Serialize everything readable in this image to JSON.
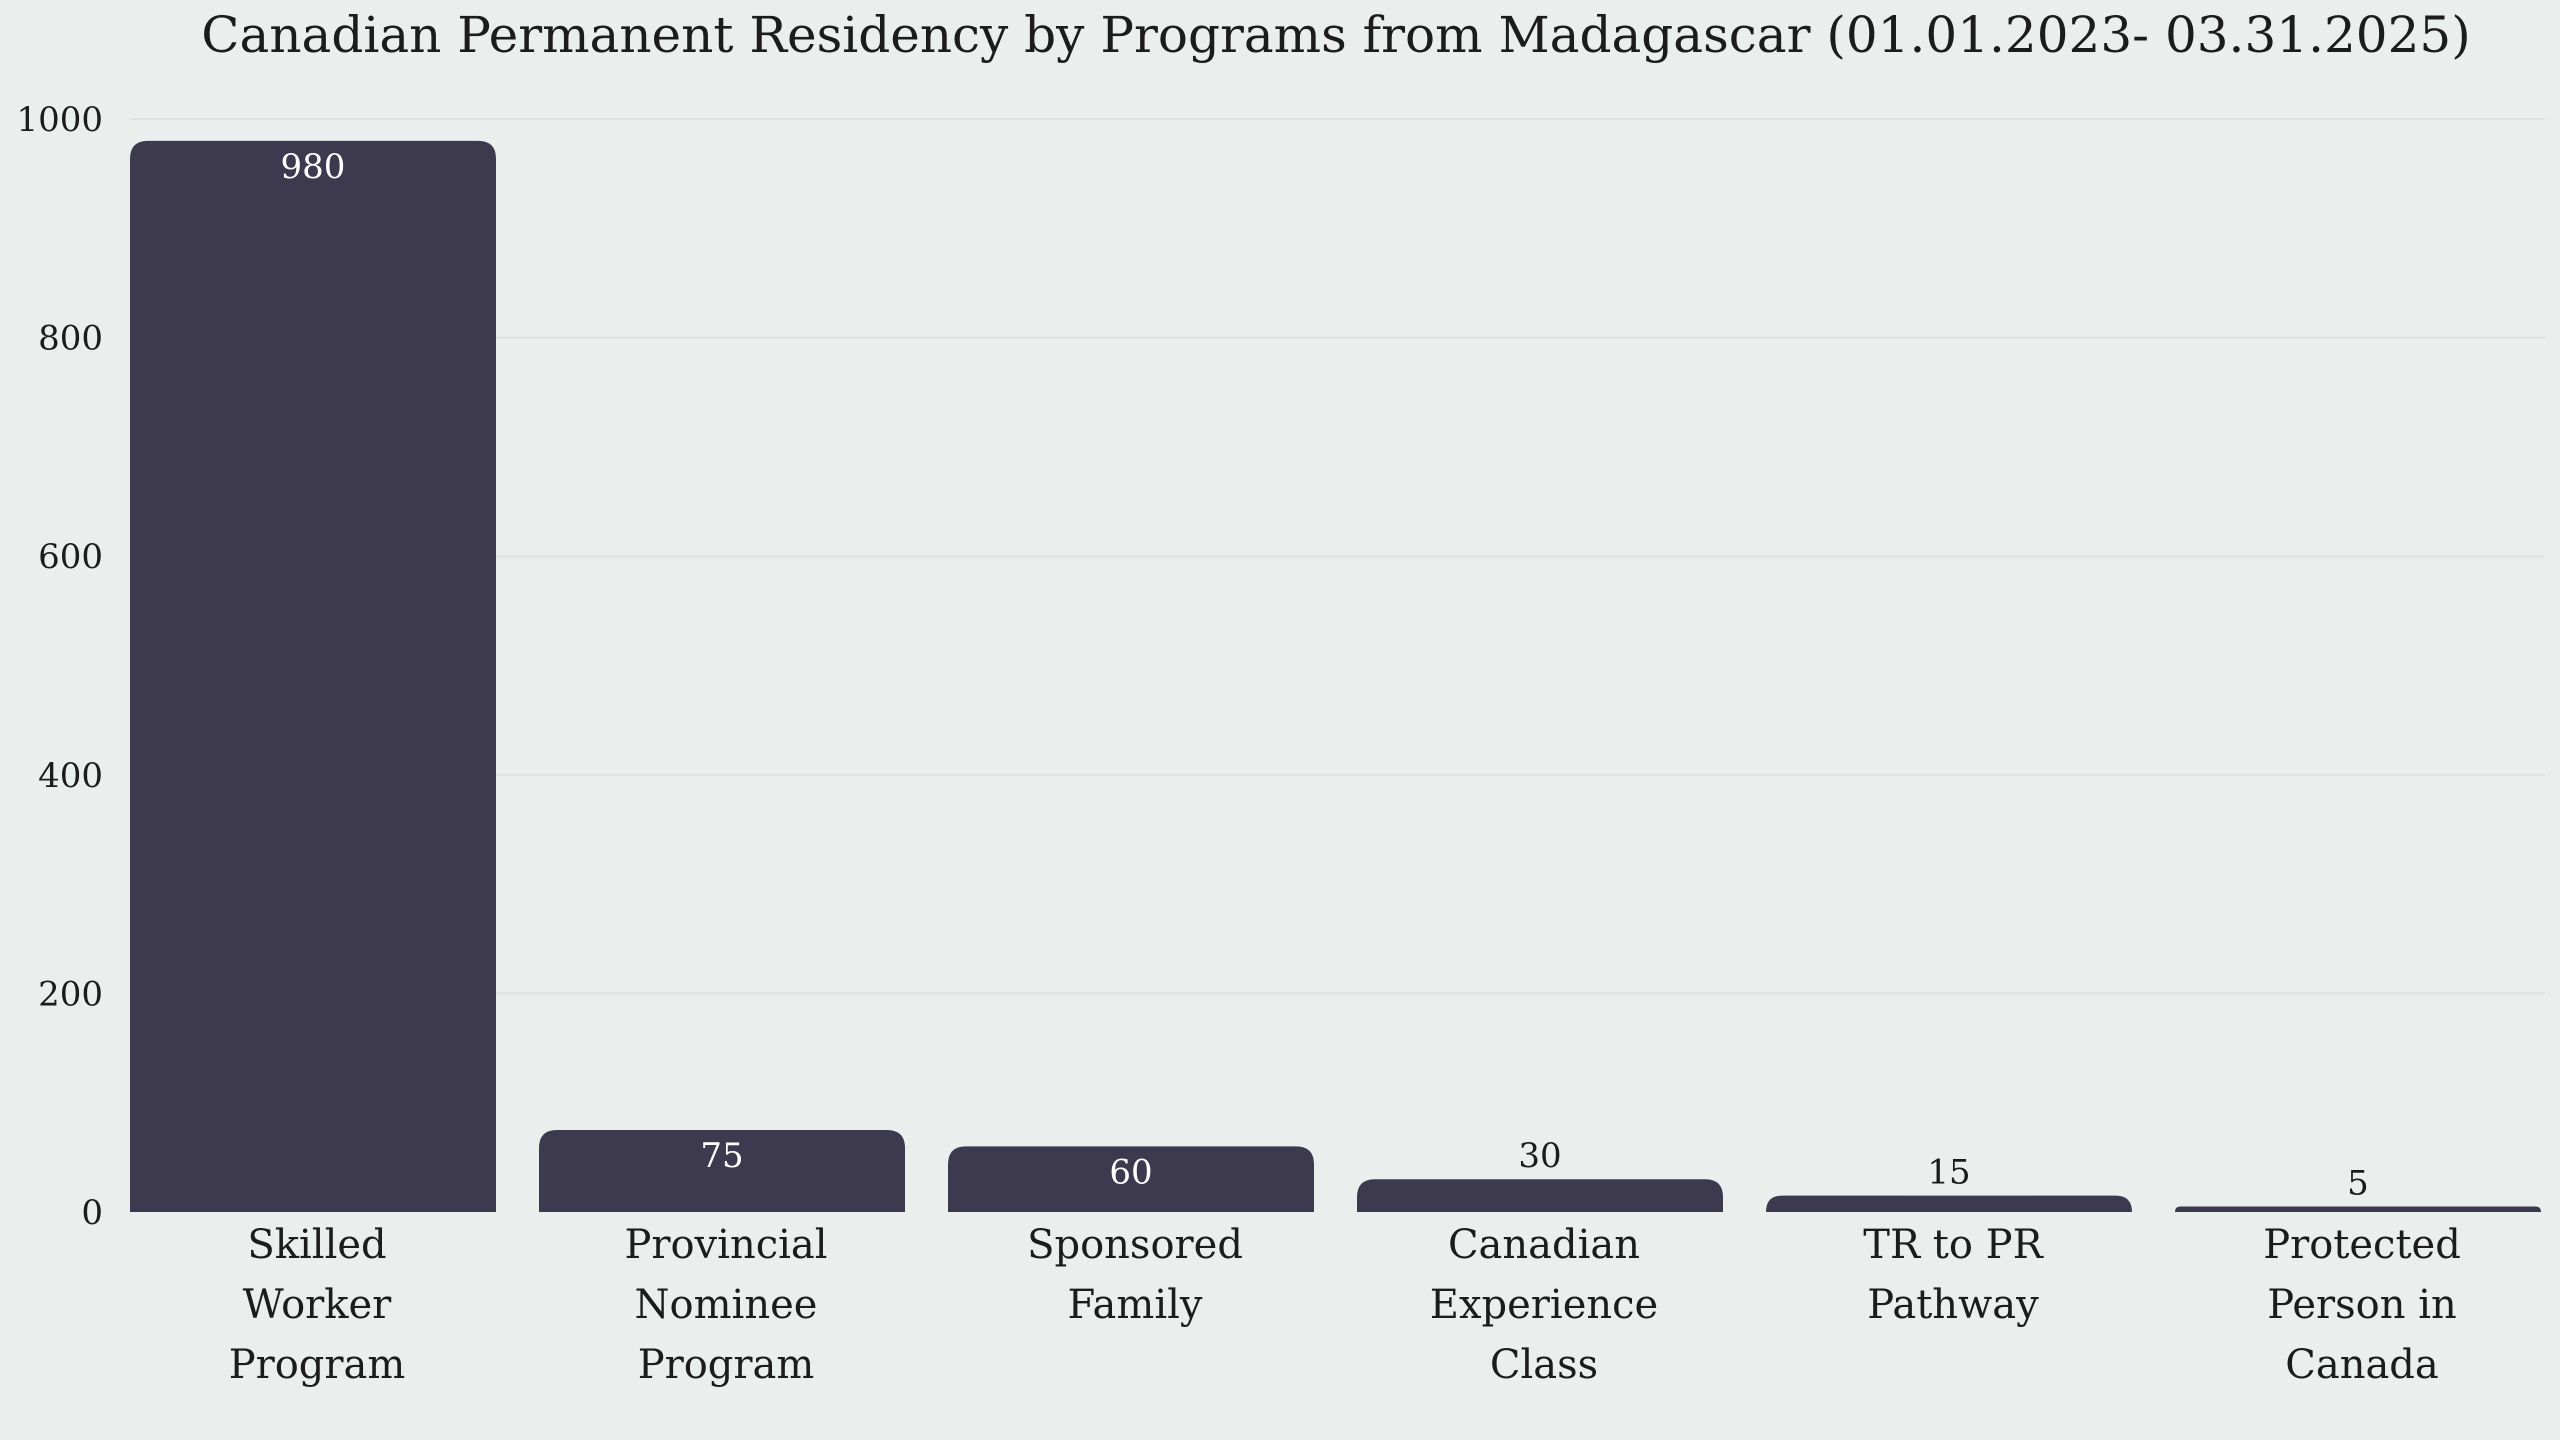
{
  "chart_data": {
    "type": "bar",
    "title": "Canadian Permanent Residency by Programs from Madagascar (01.01.2023- 03.31.2025)",
    "xlabel": "",
    "ylabel": "",
    "categories": [
      [
        "Skilled",
        "Worker",
        "Program"
      ],
      [
        "Provincial",
        "Nominee",
        "Program"
      ],
      [
        "Sponsored",
        "Family"
      ],
      [
        "Canadian",
        "Experience",
        "Class"
      ],
      [
        "TR to PR",
        "Pathway"
      ],
      [
        "Protected",
        "Person in",
        "Canada"
      ]
    ],
    "values": [
      980,
      75,
      60,
      30,
      15,
      5
    ],
    "ylim": [
      0,
      1000
    ],
    "yticks": [
      0,
      200,
      400,
      600,
      800,
      1000
    ],
    "grid": true,
    "legend": "none",
    "colors": {
      "bar": "#3d3a4f",
      "label_inside": "#ffffff",
      "label_outside": "#1c1c1c",
      "background": "#eaeeed",
      "grid": "#dde3e1"
    }
  }
}
